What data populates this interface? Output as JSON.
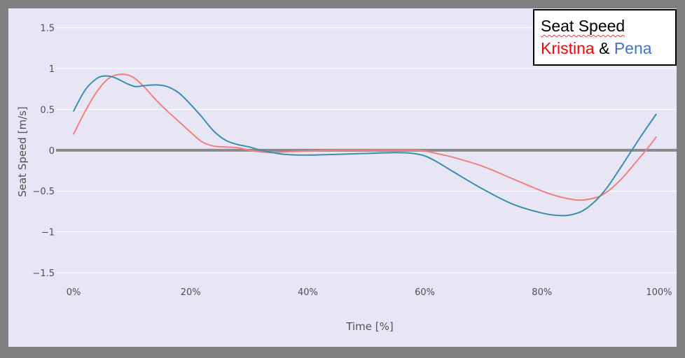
{
  "chart_data": {
    "type": "line",
    "xlabel": "Time [%]",
    "ylabel": "Seat Speed [m/s]",
    "xlim": [
      -3,
      103
    ],
    "ylim": [
      -1.62,
      1.72
    ],
    "x_ticks": [
      0,
      20,
      40,
      60,
      80,
      100
    ],
    "x_tick_labels": [
      "0%",
      "20%",
      "40%",
      "60%",
      "80%",
      "100%"
    ],
    "y_ticks": [
      1.5,
      1,
      0.5,
      0,
      -0.5,
      -1,
      -1.5
    ],
    "y_tick_labels": [
      "1.5",
      "1",
      "0.5",
      "0",
      "−0.5",
      "−1",
      "−1.5"
    ],
    "grid": true,
    "zero_line": true,
    "legend": {
      "placement": "top-right",
      "title": "Seat Speed",
      "series1_label": "Kristina",
      "joiner": "&",
      "series2_label": "Pena"
    },
    "series": [
      {
        "name": "Kristina",
        "color": "#f08080",
        "x": [
          0,
          2,
          4,
          6,
          8,
          10,
          12,
          14,
          16,
          18,
          20,
          22,
          24,
          26,
          28,
          30,
          32,
          34,
          36,
          40,
          45,
          50,
          55,
          58,
          60,
          62,
          65,
          70,
          75,
          80,
          83,
          86,
          88,
          90,
          92,
          94,
          96,
          98,
          99.5
        ],
        "y": [
          0.2,
          0.48,
          0.72,
          0.88,
          0.93,
          0.9,
          0.78,
          0.62,
          0.48,
          0.35,
          0.22,
          0.1,
          0.05,
          0.04,
          0.03,
          0.0,
          -0.02,
          -0.03,
          -0.02,
          -0.01,
          0.0,
          0.0,
          0.0,
          0.0,
          -0.01,
          -0.04,
          -0.09,
          -0.2,
          -0.35,
          -0.5,
          -0.57,
          -0.61,
          -0.6,
          -0.56,
          -0.46,
          -0.32,
          -0.15,
          0.02,
          0.16
        ]
      },
      {
        "name": "Pena",
        "color": "#3a8fb0",
        "x": [
          0,
          2,
          4,
          5.5,
          7,
          9,
          10.5,
          12,
          14,
          16,
          18,
          20,
          22,
          24,
          26,
          28,
          30,
          32,
          34,
          36,
          40,
          45,
          50,
          55,
          58,
          60,
          62,
          65,
          70,
          75,
          80,
          83,
          85,
          87,
          89,
          91,
          93,
          95,
          97,
          99.5
        ],
        "y": [
          0.48,
          0.74,
          0.88,
          0.91,
          0.89,
          0.82,
          0.78,
          0.79,
          0.8,
          0.78,
          0.7,
          0.56,
          0.4,
          0.23,
          0.12,
          0.07,
          0.04,
          0.0,
          -0.03,
          -0.05,
          -0.06,
          -0.05,
          -0.04,
          -0.03,
          -0.04,
          -0.07,
          -0.14,
          -0.27,
          -0.48,
          -0.66,
          -0.77,
          -0.8,
          -0.79,
          -0.74,
          -0.63,
          -0.47,
          -0.26,
          -0.04,
          0.18,
          0.44
        ]
      }
    ]
  }
}
